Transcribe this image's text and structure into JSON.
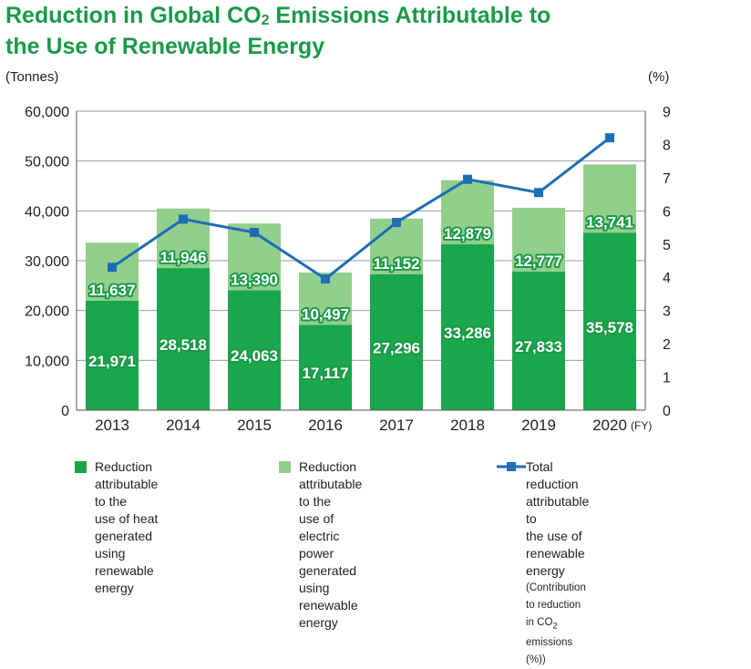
{
  "header": {
    "title_line1": "Reduction in Global CO",
    "title_sub": "2",
    "title_line1_end": " Emissions Attributable to",
    "title_line2": "the Use of Renewable Energy"
  },
  "axes_units": {
    "left": "(Tonnes)",
    "right": "(%)",
    "x_suffix": "(FY)"
  },
  "colors": {
    "heat": "#1aa64b",
    "electric": "#92cf8d",
    "line": "#1f6db5",
    "title": "#1a9a48"
  },
  "legend": {
    "heat": {
      "line1": "Reduction attributable to the",
      "line2": "use of heat generated using",
      "line3": "renewable energy"
    },
    "electric": {
      "line1": "Reduction attributable to the",
      "line2": "use of electric power generated",
      "line3": "using renewable energy"
    },
    "total": {
      "line1": "Total reduction attributable to",
      "line2": "the use of renewable energy",
      "line3": "(Contribution to reduction in CO",
      "line3_sub": "2",
      "line3_end": " emissions (%))"
    }
  },
  "chart_data": {
    "type": "bar",
    "stacked": true,
    "title": "Reduction in Global CO2 Emissions Attributable to the Use of Renewable Energy",
    "categories": [
      "2013",
      "2014",
      "2015",
      "2016",
      "2017",
      "2018",
      "2019",
      "2020"
    ],
    "series": [
      {
        "name": "Reduction attributable to the use of heat generated using renewable energy",
        "color": "#1aa64b",
        "values": [
          21971,
          28518,
          24063,
          17117,
          27296,
          33286,
          27833,
          35578
        ]
      },
      {
        "name": "Reduction attributable to the use of electric power generated using renewable energy",
        "color": "#92cf8d",
        "values": [
          11637,
          11946,
          13390,
          10497,
          11152,
          12879,
          12777,
          13741
        ]
      },
      {
        "name": "Total reduction attributable to the use of renewable energy (Contribution to reduction in CO2 emissions (%))",
        "type": "line",
        "axis": "right",
        "color": "#1f6db5",
        "values": [
          4.3,
          5.75,
          5.35,
          3.95,
          5.65,
          6.95,
          6.55,
          8.2
        ]
      }
    ],
    "ylim": [
      0,
      60000
    ],
    "yticks": [
      "0",
      "10,000",
      "20,000",
      "30,000",
      "40,000",
      "50,000",
      "60,000"
    ],
    "y2lim": [
      0,
      9
    ],
    "y2ticks": [
      "0",
      "1",
      "2",
      "3",
      "4",
      "5",
      "6",
      "7",
      "8",
      "9"
    ],
    "ylabel": "(Tonnes)",
    "y2label": "(%)",
    "xlabel": "(FY)",
    "grid": "horizontal"
  }
}
